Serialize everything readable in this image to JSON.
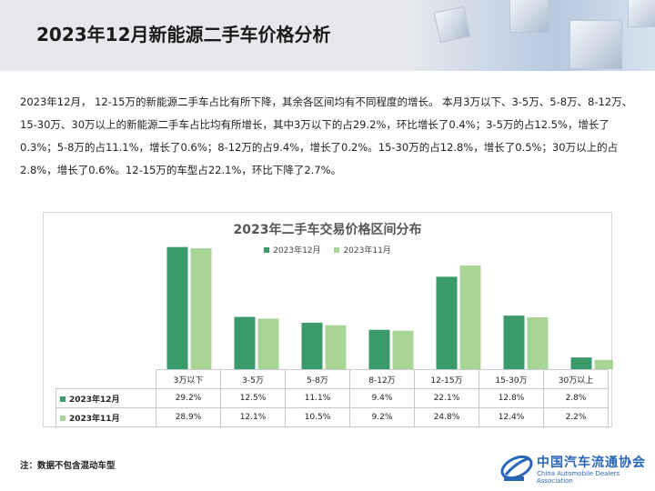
{
  "header": {
    "title": "2023年12月新能源二手车价格分析"
  },
  "intro": "2023年12月， 12-15万的新能源二手车占比有所下降，其余各区间均有不同程度的增长。 本月3万以下、3-5万、5-8万、8-12万、15-30万、30万以上的新能源二手车占比均有所增长，其中3万以下的占29.2%，环比增长了0.4%；3-5万的占12.5%，增长了0.3%；5-8万的占11.1%，增长了0.6%；8-12万的占9.4%，增长了0.2%。15-30万的占12.8%，增长了0.5%；30万以上的占2.8%，增长了0.6%。12-15万的车型占22.1%，环比下降了2.7%。",
  "footnote": "注：数据不包含混动车型",
  "logo": {
    "name": "中国汽车流通协会",
    "english": "China Automobile Dealers Association"
  },
  "colors": {
    "dec": "#3a9a6a",
    "nov": "#a9d596"
  },
  "chart_data": {
    "type": "bar",
    "title": "2023年二手车交易价格区间分布",
    "categories": [
      "3万以下",
      "3-5万",
      "5-8万",
      "8-12万",
      "12-15万",
      "15-30万",
      "30万以上"
    ],
    "series": [
      {
        "name": "2023年12月",
        "values": [
          29.2,
          12.5,
          11.1,
          9.4,
          22.1,
          12.8,
          2.8
        ],
        "labels": [
          "29.2%",
          "12.5%",
          "11.1%",
          "9.4%",
          "22.1%",
          "12.8%",
          "2.8%"
        ]
      },
      {
        "name": "2023年11月",
        "values": [
          28.9,
          12.1,
          10.5,
          9.2,
          24.8,
          12.4,
          2.2
        ],
        "labels": [
          "28.9%",
          "12.1%",
          "10.5%",
          "9.2%",
          "24.8%",
          "12.4%",
          "2.2%"
        ]
      }
    ],
    "legend_position": "top",
    "grid": false,
    "ylim": [
      0,
      30
    ]
  }
}
